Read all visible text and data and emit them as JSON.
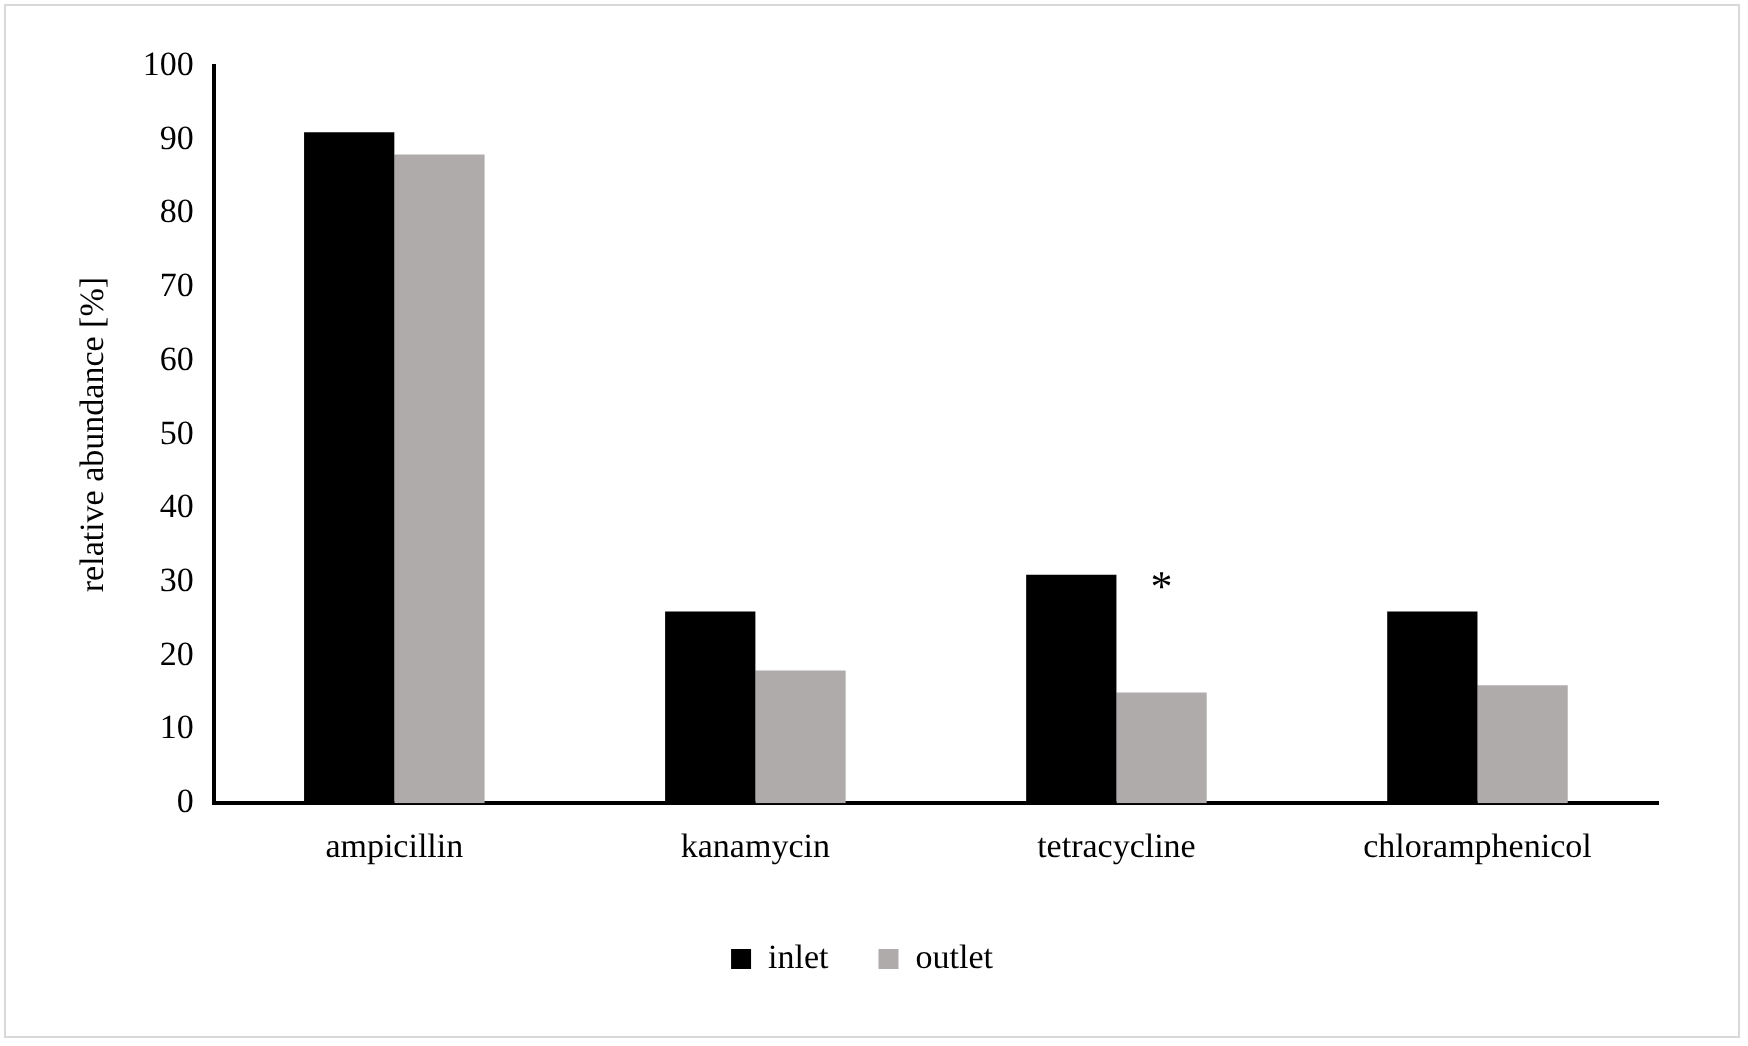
{
  "chart_data": {
    "type": "bar",
    "ylabel": "relative abundance [%]",
    "categories": [
      "ampicillin",
      "kanamycin",
      "tetracycline",
      "chloramphenicol"
    ],
    "series": [
      {
        "name": "inlet",
        "color": "#000000",
        "values": [
          91,
          26,
          31,
          26
        ]
      },
      {
        "name": "outlet",
        "color": "#afabab",
        "values": [
          88,
          18,
          15,
          16
        ]
      }
    ],
    "ylim": [
      0,
      100
    ],
    "yticks": [
      0,
      10,
      20,
      30,
      40,
      50,
      60,
      70,
      80,
      90,
      100
    ],
    "grid": false,
    "legend": "bottom",
    "annotations": [
      {
        "text": "*",
        "x": "tetracycline",
        "y": 29
      }
    ]
  }
}
